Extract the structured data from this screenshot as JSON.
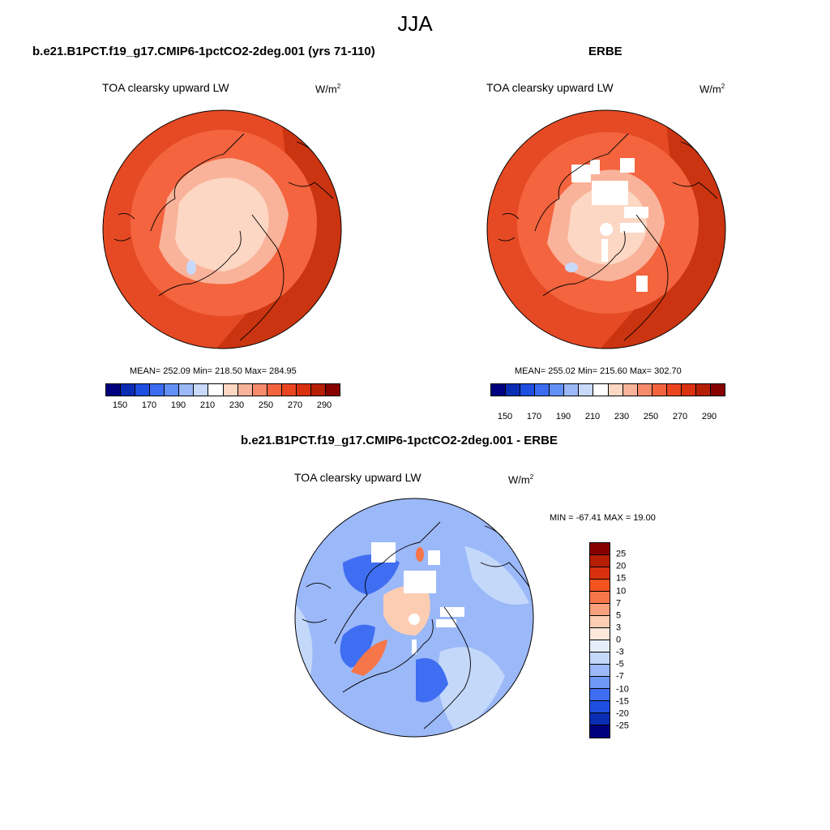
{
  "figure": {
    "title": "JJA"
  },
  "panel_left": {
    "case": "b.e21.B1PCT.f19_g17.CMIP6-1pctCO2-2deg.001 (yrs 71-110)",
    "field": "TOA clearsky upward LW",
    "units_base": "W/m",
    "units_sup": "2",
    "stats": "MEAN= 252.09  Min= 218.50  Max= 284.95"
  },
  "panel_right": {
    "case": "ERBE",
    "field": "TOA clearsky upward LW",
    "units_base": "W/m",
    "units_sup": "2",
    "stats": "MEAN= 255.02  Min= 215.60  Max= 302.70"
  },
  "panel_diff": {
    "case": "b.e21.B1PCT.f19_g17.CMIP6-1pctCO2-2deg.001 - ERBE",
    "field": "TOA clearsky upward LW",
    "units_base": "W/m",
    "units_sup": "2",
    "stats": "MIN = -67.41 MAX =  19.00"
  },
  "colorbar_abs": {
    "ticks": [
      "150",
      "170",
      "190",
      "210",
      "230",
      "250",
      "270",
      "290"
    ],
    "colors": [
      "#00007f",
      "#0b2db4",
      "#1f4fe0",
      "#3b6cf2",
      "#6390f5",
      "#9bb8f8",
      "#c8d9fa",
      "#ffffff",
      "#fcd7c3",
      "#f9b39a",
      "#f68b6c",
      "#f3643f",
      "#ea4520",
      "#d9310f",
      "#b61f06",
      "#870000"
    ]
  },
  "colorbar_diff": {
    "labels": [
      "25",
      "20",
      "15",
      "10",
      "7",
      "5",
      "3",
      "0",
      "-3",
      "-5",
      "-7",
      "-10",
      "-15",
      "-20",
      "-25"
    ],
    "colors": [
      "#870000",
      "#b61f06",
      "#d9310f",
      "#f3531f",
      "#f6764a",
      "#f9a07c",
      "#fccdb3",
      "#fde8dc",
      "#e6eefb",
      "#c4d8fa",
      "#9bb8f8",
      "#6f98f4",
      "#3f6ef2",
      "#1f4fe0",
      "#0b2db4",
      "#00007f"
    ]
  },
  "map_colors": {
    "abs_ocean": "#e54a24",
    "abs_mid": "#f3643f",
    "abs_high": "#f9b39a",
    "abs_center": "#fcd7c3",
    "abs_edge": "#c7300d",
    "abs_cold": "#c8d9fa",
    "diff_bg": "#9bb8f8",
    "diff_light": "#c4d8fa",
    "diff_dark": "#3f6ef2",
    "diff_warm": "#fccdb3",
    "diff_hot": "#f6764a"
  }
}
